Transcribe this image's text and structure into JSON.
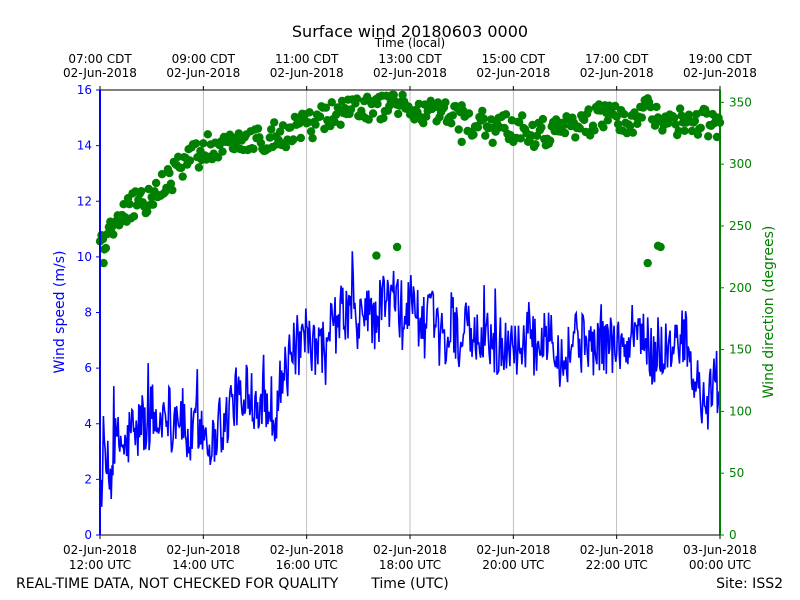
{
  "chart_data": {
    "type": "line",
    "title": "Surface wind 20180603 0000",
    "top_axis_label": "Time (local)",
    "x_label": "Time (UTC)",
    "y_left_label": "Wind speed (m/s)",
    "y_right_label": "Wind direction (degrees)",
    "footer_left": "REAL-TIME DATA, NOT CHECKED FOR QUALITY",
    "footer_right": "Site: ISS2",
    "x_range_hours_utc": [
      12,
      24
    ],
    "y_left_range": [
      0,
      16
    ],
    "y_right_range": [
      0,
      360
    ],
    "y_left_ticks": [
      "0",
      "2",
      "4",
      "6",
      "8",
      "10",
      "12",
      "14",
      "16"
    ],
    "y_right_ticks": [
      "0",
      "50",
      "100",
      "150",
      "200",
      "250",
      "300",
      "350"
    ],
    "bottom_ticks": [
      {
        "line1": "02-Jun-2018",
        "line2": "12:00 UTC"
      },
      {
        "line1": "02-Jun-2018",
        "line2": "14:00 UTC"
      },
      {
        "line1": "02-Jun-2018",
        "line2": "16:00 UTC"
      },
      {
        "line1": "02-Jun-2018",
        "line2": "18:00 UTC"
      },
      {
        "line1": "02-Jun-2018",
        "line2": "20:00 UTC"
      },
      {
        "line1": "02-Jun-2018",
        "line2": "22:00 UTC"
      },
      {
        "line1": "03-Jun-2018",
        "line2": "00:00 UTC"
      }
    ],
    "top_ticks": [
      {
        "line1": "07:00 CDT",
        "line2": "02-Jun-2018"
      },
      {
        "line1": "09:00 CDT",
        "line2": "02-Jun-2018"
      },
      {
        "line1": "11:00 CDT",
        "line2": "02-Jun-2018"
      },
      {
        "line1": "13:00 CDT",
        "line2": "02-Jun-2018"
      },
      {
        "line1": "15:00 CDT",
        "line2": "02-Jun-2018"
      },
      {
        "line1": "17:00 CDT",
        "line2": "02-Jun-2018"
      },
      {
        "line1": "19:00 CDT",
        "line2": "02-Jun-2018"
      }
    ],
    "grid": "vertical",
    "colors": {
      "speed": "#0000ff",
      "direction": "#008000"
    },
    "series": [
      {
        "values_hours": [
          12.0,
          12.1,
          12.2,
          12.3,
          12.4,
          12.5,
          12.6,
          12.7,
          12.8,
          12.9,
          13.0,
          13.1,
          13.2,
          13.3,
          13.4,
          13.5,
          13.6,
          13.7,
          13.8,
          13.9,
          14.0,
          14.1,
          14.2,
          14.3,
          14.4,
          14.5,
          14.6,
          14.7,
          14.8,
          14.9,
          15.0,
          15.1,
          15.2,
          15.3,
          15.4,
          15.5,
          15.6,
          15.7,
          15.8,
          15.9,
          16.0,
          16.1,
          16.2,
          16.3,
          16.4,
          16.5,
          16.6,
          16.7,
          16.8,
          16.9,
          17.0,
          17.1,
          17.2,
          17.3,
          17.4,
          17.5,
          17.6,
          17.7,
          17.8,
          17.9,
          18.0,
          18.1,
          18.2,
          18.3,
          18.4,
          18.5,
          18.6,
          18.7,
          18.8,
          18.9,
          19.0,
          19.1,
          19.2,
          19.3,
          19.4,
          19.5,
          19.6,
          19.7,
          19.8,
          19.9,
          20.0,
          20.1,
          20.2,
          20.3,
          20.4,
          20.5,
          20.6,
          20.7,
          20.8,
          20.9,
          21.0,
          21.1,
          21.2,
          21.3,
          21.4,
          21.5,
          21.6,
          21.7,
          21.8,
          21.9,
          22.0,
          22.1,
          22.2,
          22.3,
          22.4,
          22.5,
          22.6,
          22.7,
          22.8,
          22.9,
          23.0,
          23.1,
          23.2,
          23.3,
          23.4,
          23.5,
          23.6,
          23.7,
          23.8,
          23.9,
          24.0
        ],
        "values": [
          1.5,
          2.6,
          2.0,
          3.2,
          3.4,
          3.0,
          3.9,
          3.4,
          4.3,
          3.6,
          4.6,
          3.8,
          4.3,
          4.8,
          3.9,
          4.5,
          4.2,
          3.3,
          3.6,
          4.1,
          3.8,
          3.6,
          3.2,
          4.3,
          3.6,
          4.6,
          4.9,
          5.0,
          4.1,
          5.4,
          4.7,
          5.0,
          4.5,
          4.8,
          4.3,
          5.6,
          5.8,
          6.3,
          6.9,
          6.4,
          7.2,
          6.6,
          6.5,
          6.9,
          6.2,
          7.8,
          7.5,
          8.1,
          7.9,
          8.4,
          7.1,
          8.2,
          8.3,
          7.4,
          8.0,
          8.6,
          8.3,
          8.7,
          7.8,
          7.7,
          8.5,
          8.3,
          7.6,
          7.4,
          8.2,
          7.0,
          7.2,
          6.6,
          7.9,
          7.3,
          6.9,
          7.4,
          6.8,
          7.1,
          6.5,
          7.3,
          6.9,
          6.6,
          6.4,
          7.0,
          7.2,
          6.5,
          7.0,
          7.3,
          6.7,
          7.1,
          6.9,
          7.6,
          7.2,
          6.4,
          6.3,
          6.7,
          7.5,
          6.8,
          7.1,
          6.9,
          6.6,
          7.2,
          6.8,
          6.9,
          7.0,
          6.5,
          6.7,
          6.9,
          7.5,
          7.1,
          6.8,
          6.2,
          7.0,
          6.5,
          6.9,
          6.3,
          6.8,
          7.4,
          6.1,
          5.6,
          5.2,
          4.3,
          4.9,
          5.8,
          5.0
        ],
        "name": "Wind speed (m/s)"
      },
      {
        "values_hours": [
          12.0,
          12.1,
          12.2,
          12.3,
          12.4,
          12.5,
          12.6,
          12.7,
          12.8,
          12.9,
          13.0,
          13.1,
          13.2,
          13.3,
          13.4,
          13.5,
          13.6,
          13.7,
          13.8,
          13.9,
          14.0,
          14.1,
          14.2,
          14.3,
          14.4,
          14.5,
          14.6,
          14.7,
          14.8,
          14.9,
          15.0,
          15.1,
          15.2,
          15.3,
          15.4,
          15.5,
          15.6,
          15.7,
          15.8,
          15.9,
          16.0,
          16.1,
          16.2,
          16.3,
          16.4,
          16.5,
          16.6,
          16.7,
          16.8,
          16.9,
          17.0,
          17.1,
          17.2,
          17.3,
          17.4,
          17.5,
          17.6,
          17.7,
          17.8,
          17.9,
          18.0,
          18.1,
          18.2,
          18.3,
          18.4,
          18.5,
          18.6,
          18.7,
          18.8,
          18.9,
          19.0,
          19.1,
          19.2,
          19.3,
          19.4,
          19.5,
          19.6,
          19.7,
          19.8,
          19.9,
          20.0,
          20.1,
          20.2,
          20.3,
          20.4,
          20.5,
          20.6,
          20.7,
          20.8,
          20.9,
          21.0,
          21.1,
          21.2,
          21.3,
          21.4,
          21.5,
          21.6,
          21.7,
          21.8,
          21.9,
          22.0,
          22.1,
          22.2,
          22.3,
          22.4,
          22.5,
          22.6,
          22.7,
          22.8,
          22.9,
          23.0,
          23.1,
          23.2,
          23.3,
          23.4,
          23.5,
          23.6,
          23.7,
          23.8,
          23.9,
          24.0
        ],
        "values": [
          235,
          238,
          245,
          250,
          256,
          262,
          266,
          270,
          272,
          268,
          276,
          280,
          283,
          286,
          290,
          296,
          300,
          306,
          310,
          304,
          312,
          314,
          311,
          316,
          317,
          313,
          315,
          318,
          320,
          316,
          318,
          322,
          320,
          323,
          326,
          322,
          324,
          327,
          329,
          331,
          333,
          331,
          336,
          338,
          340,
          342,
          338,
          341,
          343,
          345,
          347,
          344,
          346,
          348,
          345,
          347,
          349,
          351,
          350,
          346,
          345,
          342,
          344,
          341,
          343,
          339,
          341,
          340,
          338,
          336,
          337,
          333,
          331,
          334,
          336,
          330,
          328,
          331,
          333,
          329,
          327,
          330,
          332,
          328,
          325,
          329,
          327,
          324,
          326,
          330,
          332,
          329,
          331,
          334,
          336,
          333,
          337,
          339,
          341,
          338,
          336,
          334,
          330,
          332,
          340,
          342,
          345,
          343,
          339,
          336,
          333,
          332,
          334,
          335,
          333,
          331,
          335,
          336,
          332,
          330,
          328
        ],
        "name": "Wind direction (degrees)"
      }
    ],
    "direction_outliers": [
      {
        "x": 12.07,
        "y": 220
      },
      {
        "x": 17.35,
        "y": 226
      },
      {
        "x": 17.75,
        "y": 233
      },
      {
        "x": 19.0,
        "y": 318
      },
      {
        "x": 22.6,
        "y": 220
      },
      {
        "x": 22.8,
        "y": 234
      },
      {
        "x": 22.85,
        "y": 233
      }
    ]
  }
}
